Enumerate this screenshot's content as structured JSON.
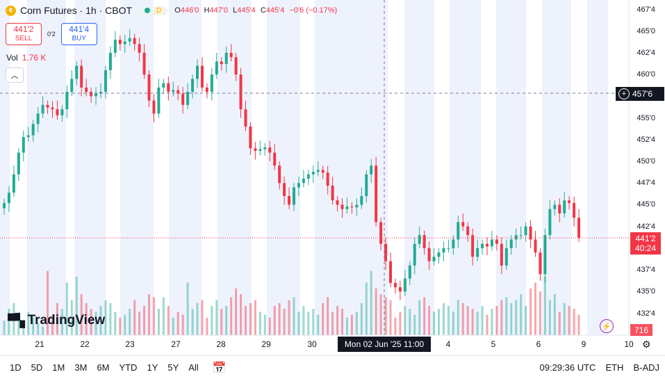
{
  "legend": {
    "symbol_icon": "coin-icon",
    "title": "Corn Futures · 1h · CBOT",
    "market_badge": "D",
    "ohlc": [
      {
        "k": "O",
        "v": "446'0"
      },
      {
        "k": "H",
        "v": "447'0"
      },
      {
        "k": "L",
        "v": "445'4"
      },
      {
        "k": "C",
        "v": "445'4"
      }
    ],
    "change": "−0'6 (−0.17%)"
  },
  "trade": {
    "sell_price": "441'2",
    "sell_label": "SELL",
    "spread": "0'2",
    "buy_price": "441'4",
    "buy_label": "BUY"
  },
  "volume": {
    "label": "Vol",
    "value": "1.76 K"
  },
  "logo_text": "TradingView",
  "price_axis": [
    "467'4",
    "465'0",
    "462'4",
    "460'0",
    "455'0",
    "452'4",
    "450'0",
    "447'4",
    "445'0",
    "442'4",
    "437'4",
    "435'0",
    "432'4"
  ],
  "time_axis": [
    "21",
    "22",
    "23",
    "27",
    "28",
    "29",
    "30",
    "4",
    "5",
    "6",
    "9",
    "10"
  ],
  "crosshair": {
    "time": "Mon 02 Jun '25   11:00",
    "price": "457'6"
  },
  "last_price": {
    "price": "441'2",
    "countdown": "40:24"
  },
  "volume_badge": "716",
  "bottom": {
    "ranges": [
      "1D",
      "5D",
      "1M",
      "3M",
      "6M",
      "YTD",
      "1Y",
      "5Y",
      "All"
    ],
    "clock": "09:29:36 UTC",
    "session": "ETH",
    "adjust": "B-ADJ"
  },
  "colors": {
    "up": "#22ab94",
    "down": "#f23645",
    "session_bg": "#eef2fd",
    "crosshair": "#787b86"
  },
  "chart_data": {
    "type": "candlestick",
    "x_labels": [
      "21",
      "22",
      "23",
      "27",
      "28",
      "29",
      "30",
      "4",
      "5",
      "6",
      "9",
      "10"
    ],
    "ylim": [
      432.0,
      468.0
    ],
    "y_ticks": [
      467.5,
      465.0,
      462.5,
      460.0,
      455.0,
      452.5,
      450.0,
      447.5,
      445.0,
      442.5,
      437.5,
      435.0,
      432.5
    ],
    "close": [
      445.2,
      446.4,
      448.5,
      451.0,
      452.8,
      453.0,
      454.3,
      455.5,
      456.5,
      456.2,
      456.0,
      455.3,
      456.0,
      458.0,
      459.5,
      461.0,
      458.5,
      458.0,
      457.5,
      457.8,
      458.0,
      460.5,
      462.5,
      464.0,
      463.5,
      463.8,
      464.2,
      463.5,
      462.5,
      460.0,
      457.0,
      455.5,
      458.5,
      459.0,
      458.0,
      458.2,
      457.8,
      456.5,
      458.0,
      459.5,
      461.0,
      458.5,
      458.0,
      460.0,
      461.5,
      461.2,
      462.5,
      462.0,
      460.0,
      456.0,
      454.0,
      451.5,
      451.2,
      451.4,
      451.6,
      451.0,
      449.5,
      447.5,
      446.0,
      445.0,
      447.0,
      447.5,
      448.0,
      448.5,
      448.8,
      449.0,
      448.7,
      447.2,
      445.5,
      445.0,
      444.5,
      444.8,
      444.7,
      445.0,
      446.0,
      448.5,
      449.5,
      443.0,
      440.5,
      438.5,
      436.0,
      435.5,
      435.0,
      436.5,
      438.0,
      440.5,
      441.5,
      440.0,
      438.5,
      439.0,
      439.5,
      440.0,
      440.0,
      441.0,
      443.0,
      442.5,
      441.5,
      439.0,
      440.0,
      440.5,
      440.2,
      441.0,
      440.5,
      438.0,
      440.0,
      441.0,
      441.5,
      441.5,
      442.5,
      441.0,
      439.5,
      437.0,
      441.5,
      444.5,
      445.0,
      444.0,
      445.5,
      445.2,
      443.5,
      441.2
    ],
    "volume": [
      5,
      9,
      11,
      8,
      5,
      8,
      6,
      4,
      3,
      22,
      7,
      11,
      9,
      18,
      12,
      20,
      14,
      11,
      9,
      8,
      10,
      12,
      11,
      8,
      6,
      7,
      9,
      12,
      8,
      10,
      14,
      13,
      9,
      13,
      10,
      6,
      8,
      7,
      18,
      9,
      11,
      12,
      6,
      10,
      12,
      9,
      10,
      13,
      16,
      14,
      10,
      11,
      12,
      8,
      7,
      6,
      10,
      11,
      9,
      12,
      13,
      8,
      10,
      8,
      9,
      7,
      11,
      13,
      8,
      10,
      9,
      6,
      7,
      8,
      11,
      18,
      22,
      16,
      14,
      13,
      12,
      6,
      8,
      10,
      9,
      7,
      12,
      13,
      10,
      8,
      9,
      11,
      10,
      8,
      12,
      11,
      10,
      9,
      8,
      10,
      7,
      9,
      10,
      12,
      13,
      11,
      12,
      14,
      10,
      16,
      18,
      15,
      20,
      12,
      14,
      8,
      11,
      10,
      9,
      7
    ]
  }
}
